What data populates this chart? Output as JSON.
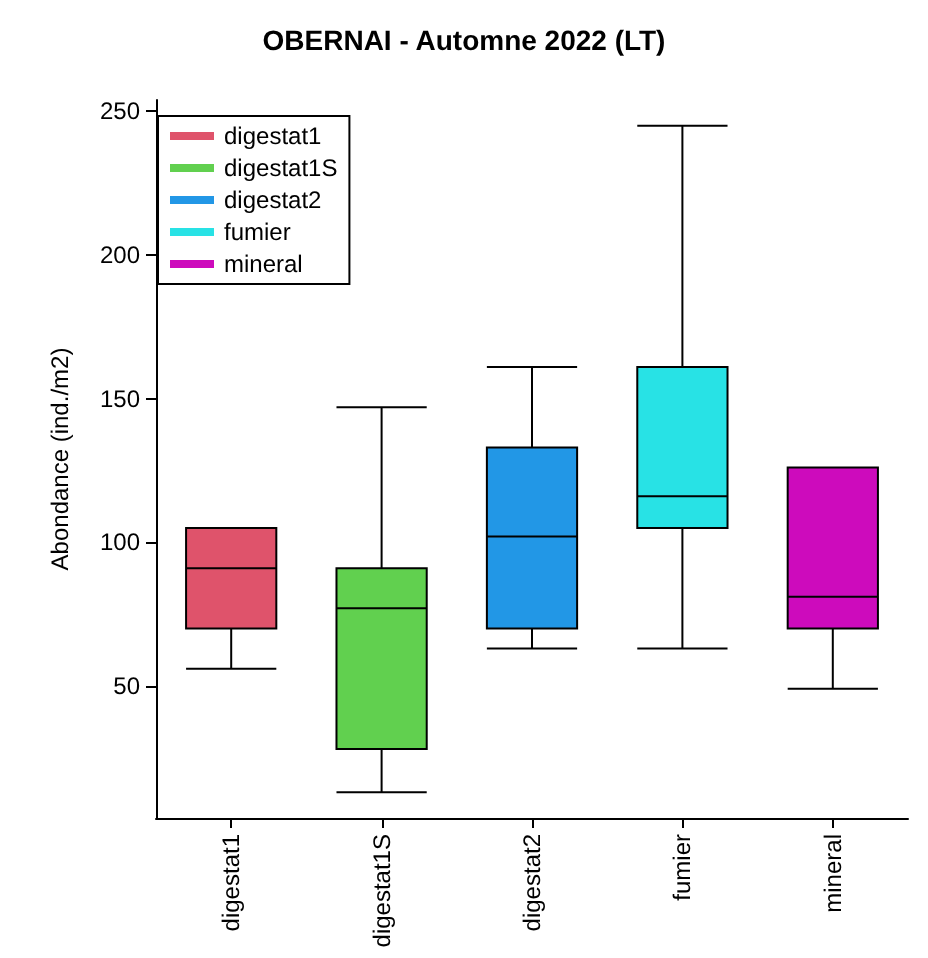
{
  "chart_data": {
    "type": "box",
    "title": "OBERNAI - Automne 2022 (LT)",
    "ylabel": "Abondance (ind./m2)",
    "categories": [
      "digestat1",
      "digestat1S",
      "digestat2",
      "fumier",
      "mineral"
    ],
    "series": [
      {
        "name": "digestat1",
        "color": "#df536b",
        "boxes": [
          {
            "low": 56,
            "q1": 70,
            "median": 91,
            "q3": 105,
            "high": 105
          },
          null,
          null,
          null,
          null
        ]
      },
      {
        "name": "digestat1S",
        "color": "#61d04f",
        "boxes": [
          null,
          {
            "low": 13,
            "q1": 28,
            "median": 77,
            "q3": 91,
            "high": 147
          },
          null,
          null,
          null
        ]
      },
      {
        "name": "digestat2",
        "color": "#2297e6",
        "boxes": [
          null,
          null,
          {
            "low": 63,
            "q1": 70,
            "median": 102,
            "q3": 133,
            "high": 161
          },
          null,
          null
        ]
      },
      {
        "name": "fumier",
        "color": "#28e2e5",
        "boxes": [
          null,
          null,
          null,
          {
            "low": 63,
            "q1": 105,
            "median": 116,
            "q3": 161,
            "high": 245
          },
          null
        ]
      },
      {
        "name": "mineral",
        "color": "#cd0bbc",
        "boxes": [
          null,
          null,
          null,
          null,
          {
            "low": 49,
            "q1": 70,
            "median": 81,
            "q3": 126,
            "high": 126
          }
        ]
      }
    ],
    "ylim": [
      4,
      254
    ],
    "yticks": [
      50,
      100,
      150,
      200,
      250
    ],
    "legend": "top left"
  }
}
